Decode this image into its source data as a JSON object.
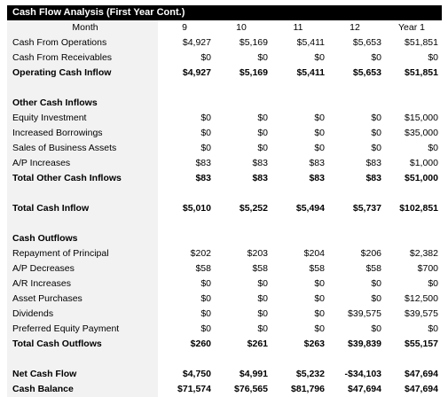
{
  "title": "Cash Flow Analysis (First Year Cont.)",
  "header": {
    "label": "Month",
    "cols": [
      "9",
      "10",
      "11",
      "12",
      "Year 1"
    ]
  },
  "rows": [
    {
      "type": "data",
      "label": "Cash From Operations",
      "values": [
        "$4,927",
        "$5,169",
        "$5,411",
        "$5,653",
        "$51,851"
      ]
    },
    {
      "type": "data",
      "label": "Cash From Receivables",
      "values": [
        "$0",
        "$0",
        "$0",
        "$0",
        "$0"
      ]
    },
    {
      "type": "data",
      "bold": true,
      "label": "Operating Cash Inflow",
      "values": [
        "$4,927",
        "$5,169",
        "$5,411",
        "$5,653",
        "$51,851"
      ]
    },
    {
      "type": "spacer"
    },
    {
      "type": "section",
      "label": "Other Cash Inflows"
    },
    {
      "type": "data",
      "label": "Equity Investment",
      "values": [
        "$0",
        "$0",
        "$0",
        "$0",
        "$15,000"
      ]
    },
    {
      "type": "data",
      "label": "Increased Borrowings",
      "values": [
        "$0",
        "$0",
        "$0",
        "$0",
        "$35,000"
      ]
    },
    {
      "type": "data",
      "label": "Sales of Business Assets",
      "values": [
        "$0",
        "$0",
        "$0",
        "$0",
        "$0"
      ]
    },
    {
      "type": "data",
      "label": "A/P Increases",
      "values": [
        "$83",
        "$83",
        "$83",
        "$83",
        "$1,000"
      ]
    },
    {
      "type": "data",
      "bold": true,
      "label": "Total Other Cash Inflows",
      "values": [
        "$83",
        "$83",
        "$83",
        "$83",
        "$51,000"
      ]
    },
    {
      "type": "spacer"
    },
    {
      "type": "data",
      "bold": true,
      "label": "Total Cash Inflow",
      "values": [
        "$5,010",
        "$5,252",
        "$5,494",
        "$5,737",
        "$102,851"
      ]
    },
    {
      "type": "spacer"
    },
    {
      "type": "section",
      "label": "Cash Outflows"
    },
    {
      "type": "data",
      "label": "Repayment of Principal",
      "values": [
        "$202",
        "$203",
        "$204",
        "$206",
        "$2,382"
      ]
    },
    {
      "type": "data",
      "label": "A/P Decreases",
      "values": [
        "$58",
        "$58",
        "$58",
        "$58",
        "$700"
      ]
    },
    {
      "type": "data",
      "label": "A/R Increases",
      "values": [
        "$0",
        "$0",
        "$0",
        "$0",
        "$0"
      ]
    },
    {
      "type": "data",
      "label": "Asset Purchases",
      "values": [
        "$0",
        "$0",
        "$0",
        "$0",
        "$12,500"
      ]
    },
    {
      "type": "data",
      "label": "Dividends",
      "values": [
        "$0",
        "$0",
        "$0",
        "$39,575",
        "$39,575"
      ]
    },
    {
      "type": "data",
      "label": "Preferred Equity Payment",
      "values": [
        "$0",
        "$0",
        "$0",
        "$0",
        "$0"
      ]
    },
    {
      "type": "data",
      "bold": true,
      "label": "Total Cash Outflows",
      "values": [
        "$260",
        "$261",
        "$263",
        "$39,839",
        "$55,157"
      ]
    },
    {
      "type": "spacer"
    },
    {
      "type": "data",
      "bold": true,
      "label": "Net Cash Flow",
      "values": [
        "$4,750",
        "$4,991",
        "$5,232",
        "-$34,103",
        "$47,694"
      ]
    },
    {
      "type": "data",
      "bold": true,
      "label": "Cash Balance",
      "values": [
        "$71,574",
        "$76,565",
        "$81,796",
        "$47,694",
        "$47,694"
      ]
    }
  ]
}
